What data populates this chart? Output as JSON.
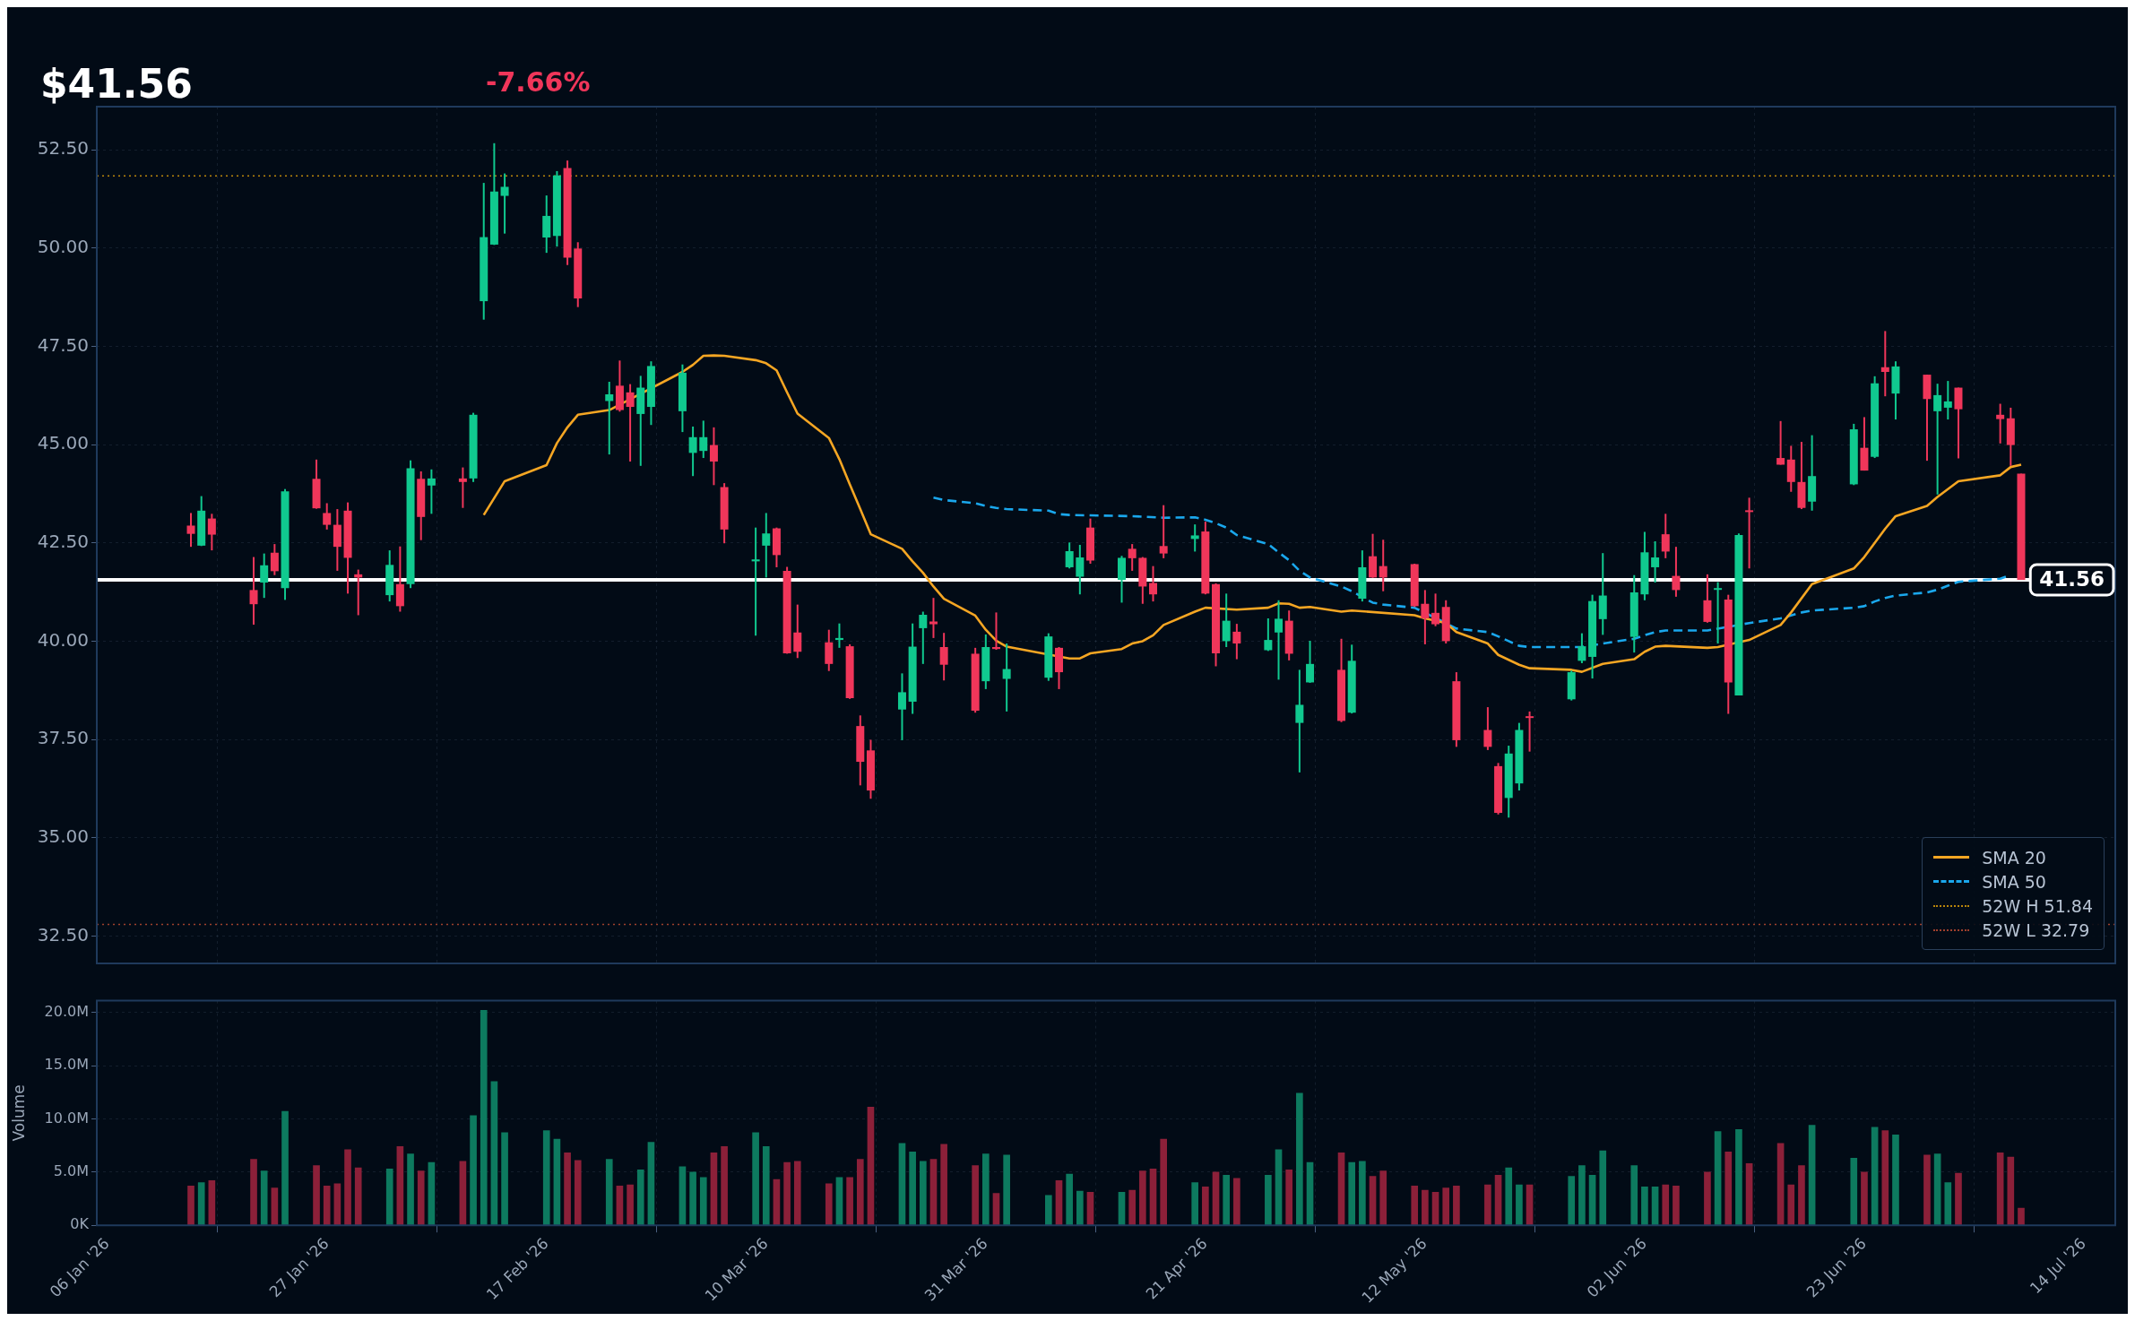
{
  "chart_data": [
    {
      "type": "candlestick",
      "title": "$41.56",
      "subtitle": "-7.66%",
      "x": [
        "2026-01-14",
        "2026-01-15",
        "2026-01-16",
        "2026-01-20",
        "2026-01-21",
        "2026-01-22",
        "2026-01-23",
        "2026-01-26",
        "2026-01-27",
        "2026-01-28",
        "2026-01-29",
        "2026-01-30",
        "2026-02-02",
        "2026-02-03",
        "2026-02-04",
        "2026-02-05",
        "2026-02-06",
        "2026-02-09",
        "2026-02-10",
        "2026-02-11",
        "2026-02-12",
        "2026-02-13",
        "2026-02-17",
        "2026-02-18",
        "2026-02-19",
        "2026-02-20",
        "2026-02-23",
        "2026-02-24",
        "2026-02-25",
        "2026-02-26",
        "2026-02-27",
        "2026-03-02",
        "2026-03-03",
        "2026-03-04",
        "2026-03-05",
        "2026-03-06",
        "2026-03-09",
        "2026-03-10",
        "2026-03-11",
        "2026-03-12",
        "2026-03-13",
        "2026-03-16",
        "2026-03-17",
        "2026-03-18",
        "2026-03-19",
        "2026-03-20",
        "2026-03-23",
        "2026-03-24",
        "2026-03-25",
        "2026-03-26",
        "2026-03-27",
        "2026-03-30",
        "2026-03-31",
        "2026-04-01",
        "2026-04-02",
        "2026-04-06",
        "2026-04-07",
        "2026-04-08",
        "2026-04-09",
        "2026-04-10",
        "2026-04-13",
        "2026-04-14",
        "2026-04-15",
        "2026-04-16",
        "2026-04-17",
        "2026-04-20",
        "2026-04-21",
        "2026-04-22",
        "2026-04-23",
        "2026-04-24",
        "2026-04-27",
        "2026-04-28",
        "2026-04-29",
        "2026-04-30",
        "2026-05-01",
        "2026-05-04",
        "2026-05-05",
        "2026-05-06",
        "2026-05-07",
        "2026-05-08",
        "2026-05-11",
        "2026-05-12",
        "2026-05-13",
        "2026-05-14",
        "2026-05-15",
        "2026-05-18",
        "2026-05-19",
        "2026-05-20",
        "2026-05-21",
        "2026-05-22",
        "2026-05-26",
        "2026-05-27",
        "2026-05-28",
        "2026-05-29",
        "2026-06-01",
        "2026-06-02",
        "2026-06-03",
        "2026-06-04",
        "2026-06-05",
        "2026-06-08",
        "2026-06-09",
        "2026-06-10",
        "2026-06-11",
        "2026-06-12",
        "2026-06-15",
        "2026-06-16",
        "2026-06-17",
        "2026-06-18",
        "2026-06-22",
        "2026-06-23",
        "2026-06-24",
        "2026-06-25",
        "2026-06-26",
        "2026-06-29",
        "2026-06-30",
        "2026-07-01",
        "2026-07-02",
        "2026-07-06",
        "2026-07-07",
        "2026-07-08"
      ],
      "ohlc": [
        [
          42.94,
          43.26,
          42.4,
          42.73
        ],
        [
          42.43,
          43.69,
          42.42,
          43.32
        ],
        [
          43.12,
          43.24,
          42.31,
          42.71
        ],
        [
          41.3,
          42.14,
          40.42,
          40.94
        ],
        [
          41.49,
          42.23,
          41.1,
          41.93
        ],
        [
          42.25,
          42.47,
          41.68,
          41.78
        ],
        [
          41.35,
          43.87,
          41.05,
          43.81
        ],
        [
          44.13,
          44.62,
          43.37,
          43.38
        ],
        [
          43.26,
          43.51,
          42.84,
          42.96
        ],
        [
          42.96,
          43.36,
          41.79,
          42.4
        ],
        [
          43.32,
          43.53,
          41.21,
          42.12
        ],
        [
          41.7,
          41.82,
          40.66,
          41.62
        ],
        [
          41.17,
          42.31,
          41.01,
          41.94
        ],
        [
          41.45,
          42.41,
          40.75,
          40.89
        ],
        [
          41.45,
          44.6,
          41.35,
          44.4
        ],
        [
          44.13,
          44.32,
          42.57,
          43.16
        ],
        [
          43.96,
          44.37,
          43.24,
          44.14
        ],
        [
          44.14,
          44.42,
          43.39,
          44.05
        ],
        [
          44.14,
          45.81,
          44.05,
          45.76
        ],
        [
          48.65,
          51.66,
          48.18,
          50.28
        ],
        [
          50.09,
          52.67,
          50.08,
          51.44
        ],
        [
          51.33,
          51.9,
          50.37,
          51.56
        ],
        [
          50.27,
          51.34,
          49.88,
          50.82
        ],
        [
          50.31,
          51.96,
          50.04,
          51.85
        ],
        [
          52.04,
          52.23,
          49.57,
          49.76
        ],
        [
          49.99,
          50.15,
          48.5,
          48.72
        ],
        [
          46.11,
          46.6,
          44.75,
          46.28
        ],
        [
          46.5,
          47.14,
          45.84,
          45.88
        ],
        [
          46.33,
          46.54,
          44.57,
          45.96
        ],
        [
          45.78,
          46.75,
          44.46,
          46.45
        ],
        [
          45.96,
          47.12,
          45.5,
          47.0
        ],
        [
          45.85,
          47.04,
          45.32,
          46.83
        ],
        [
          44.79,
          45.46,
          44.2,
          45.19
        ],
        [
          44.84,
          45.61,
          44.66,
          45.19
        ],
        [
          44.99,
          45.44,
          43.97,
          44.57
        ],
        [
          43.92,
          44.02,
          42.49,
          42.84
        ],
        [
          42.03,
          42.89,
          40.14,
          42.08
        ],
        [
          42.43,
          43.26,
          41.62,
          42.74
        ],
        [
          42.87,
          42.89,
          41.88,
          42.19
        ],
        [
          41.79,
          41.89,
          39.68,
          39.69
        ],
        [
          40.22,
          40.93,
          39.57,
          39.73
        ],
        [
          39.97,
          40.29,
          39.24,
          39.42
        ],
        [
          40.03,
          40.45,
          39.83,
          40.08
        ],
        [
          39.87,
          39.92,
          38.53,
          38.55
        ],
        [
          37.84,
          38.11,
          36.33,
          36.93
        ],
        [
          37.22,
          37.49,
          35.99,
          36.2
        ],
        [
          38.26,
          39.18,
          37.48,
          38.7
        ],
        [
          38.46,
          40.45,
          38.15,
          39.86
        ],
        [
          40.33,
          40.75,
          39.42,
          40.67
        ],
        [
          40.5,
          41.1,
          40.08,
          40.43
        ],
        [
          39.85,
          40.21,
          39.0,
          39.4
        ],
        [
          39.68,
          39.83,
          38.18,
          38.23
        ],
        [
          38.98,
          40.17,
          38.78,
          39.85
        ],
        [
          39.85,
          40.73,
          39.78,
          39.8
        ],
        [
          39.04,
          39.94,
          38.21,
          39.29
        ],
        [
          39.07,
          40.2,
          38.99,
          40.12
        ],
        [
          39.83,
          39.85,
          38.78,
          39.21
        ],
        [
          41.88,
          42.51,
          41.85,
          42.29
        ],
        [
          41.64,
          42.45,
          41.19,
          42.13
        ],
        [
          42.89,
          43.12,
          41.97,
          42.05
        ],
        [
          41.56,
          42.17,
          40.98,
          42.12
        ],
        [
          42.35,
          42.47,
          41.79,
          42.11
        ],
        [
          42.12,
          42.14,
          40.95,
          41.39
        ],
        [
          41.48,
          41.91,
          41.01,
          41.19
        ],
        [
          42.42,
          43.46,
          42.11,
          42.23
        ],
        [
          42.6,
          42.97,
          42.28,
          42.69
        ],
        [
          42.79,
          43.04,
          41.19,
          41.21
        ],
        [
          41.45,
          41.47,
          39.36,
          39.69
        ],
        [
          40.0,
          41.21,
          39.85,
          40.52
        ],
        [
          40.24,
          40.44,
          39.54,
          39.94
        ],
        [
          39.77,
          40.58,
          39.75,
          40.03
        ],
        [
          40.22,
          41.04,
          39.02,
          40.57
        ],
        [
          40.52,
          40.78,
          39.51,
          39.68
        ],
        [
          37.92,
          39.27,
          36.66,
          38.38
        ],
        [
          38.95,
          40.01,
          38.94,
          39.42
        ],
        [
          39.27,
          40.06,
          37.94,
          37.97
        ],
        [
          38.18,
          39.91,
          38.16,
          39.5
        ],
        [
          41.08,
          42.31,
          41.01,
          41.88
        ],
        [
          42.16,
          42.73,
          41.61,
          41.62
        ],
        [
          41.91,
          42.58,
          41.27,
          41.62
        ],
        [
          41.96,
          41.97,
          40.87,
          40.89
        ],
        [
          40.95,
          41.3,
          39.92,
          40.58
        ],
        [
          40.72,
          41.21,
          40.38,
          40.43
        ],
        [
          40.87,
          41.04,
          39.94,
          40.0
        ],
        [
          38.98,
          39.21,
          37.31,
          37.48
        ],
        [
          37.74,
          38.32,
          37.23,
          37.31
        ],
        [
          36.82,
          36.9,
          35.59,
          35.63
        ],
        [
          36.01,
          37.34,
          35.51,
          37.14
        ],
        [
          36.38,
          37.92,
          36.2,
          37.74
        ],
        [
          38.09,
          38.21,
          37.19,
          38.05
        ],
        [
          38.52,
          39.25,
          38.49,
          39.21
        ],
        [
          39.5,
          40.2,
          39.44,
          39.87
        ],
        [
          39.6,
          41.18,
          39.05,
          41.02
        ],
        [
          40.56,
          42.24,
          40.16,
          41.16
        ],
        [
          40.11,
          41.68,
          39.71,
          41.24
        ],
        [
          41.19,
          42.78,
          41.04,
          42.26
        ],
        [
          41.88,
          42.54,
          41.49,
          42.13
        ],
        [
          42.72,
          43.24,
          42.11,
          42.28
        ],
        [
          41.66,
          42.4,
          41.13,
          41.3
        ],
        [
          41.04,
          41.7,
          40.47,
          40.49
        ],
        [
          41.31,
          41.5,
          39.94,
          41.35
        ],
        [
          41.06,
          41.18,
          38.15,
          38.95
        ],
        [
          38.62,
          42.74,
          38.62,
          42.7
        ],
        [
          43.33,
          43.65,
          41.85,
          43.3
        ],
        [
          44.66,
          45.6,
          44.49,
          44.49
        ],
        [
          44.62,
          44.97,
          43.8,
          44.05
        ],
        [
          44.05,
          45.07,
          43.36,
          43.39
        ],
        [
          43.55,
          45.24,
          43.32,
          44.2
        ],
        [
          43.99,
          45.53,
          43.97,
          45.39
        ],
        [
          44.92,
          45.7,
          44.34,
          44.34
        ],
        [
          44.69,
          46.74,
          44.66,
          46.56
        ],
        [
          46.97,
          47.89,
          46.23,
          46.85
        ],
        [
          46.3,
          47.12,
          45.64,
          46.99
        ],
        [
          46.78,
          46.78,
          44.59,
          46.16
        ],
        [
          45.85,
          46.55,
          43.73,
          46.26
        ],
        [
          45.94,
          46.62,
          45.64,
          46.1
        ],
        [
          46.45,
          46.45,
          44.65,
          45.9
        ],
        [
          45.76,
          46.04,
          45.03,
          45.65
        ],
        [
          45.67,
          45.94,
          44.46,
          44.99
        ],
        [
          44.26,
          44.26,
          41.56,
          41.56
        ]
      ],
      "series": [
        {
          "name": "SMA 20",
          "type": "line",
          "color": "#f5a623",
          "line_style": "solid",
          "x": [
            "2026-02-11",
            "2026-02-13",
            "2026-02-17",
            "2026-02-18",
            "2026-02-19",
            "2026-02-20",
            "2026-02-23",
            "2026-02-25",
            "2026-02-27",
            "2026-03-02",
            "2026-03-03",
            "2026-03-04",
            "2026-03-05",
            "2026-03-06",
            "2026-03-09",
            "2026-03-10",
            "2026-03-11",
            "2026-03-12",
            "2026-03-13",
            "2026-03-16",
            "2026-03-17",
            "2026-03-18",
            "2026-03-19",
            "2026-03-20",
            "2026-03-23",
            "2026-03-24",
            "2026-03-25",
            "2026-03-26",
            "2026-03-27",
            "2026-03-30",
            "2026-03-31",
            "2026-04-01",
            "2026-04-02",
            "2026-04-06",
            "2026-04-07",
            "2026-04-08",
            "2026-04-09",
            "2026-04-10",
            "2026-04-13",
            "2026-04-14",
            "2026-04-15",
            "2026-04-16",
            "2026-04-17",
            "2026-04-20",
            "2026-04-21",
            "2026-04-24",
            "2026-04-27",
            "2026-04-28",
            "2026-04-29",
            "2026-04-30",
            "2026-05-01",
            "2026-05-04",
            "2026-05-05",
            "2026-05-11",
            "2026-05-12",
            "2026-05-14",
            "2026-05-15",
            "2026-05-18",
            "2026-05-19",
            "2026-05-21",
            "2026-05-22",
            "2026-05-26",
            "2026-05-27",
            "2026-05-29",
            "2026-06-01",
            "2026-06-02",
            "2026-06-03",
            "2026-06-04",
            "2026-06-08",
            "2026-06-09",
            "2026-06-10",
            "2026-06-11",
            "2026-06-12",
            "2026-06-15",
            "2026-06-16",
            "2026-06-18",
            "2026-06-22",
            "2026-06-23",
            "2026-06-25",
            "2026-06-26",
            "2026-06-29",
            "2026-06-30",
            "2026-07-02",
            "2026-07-06",
            "2026-07-07",
            "2026-07-08"
          ],
          "values": [
            43.21,
            44.07,
            44.48,
            45.04,
            45.44,
            45.76,
            45.88,
            null,
            null,
            46.85,
            47.03,
            47.26,
            47.27,
            47.26,
            47.15,
            47.07,
            46.89,
            46.33,
            45.79,
            45.17,
            44.63,
            43.99,
            43.36,
            42.72,
            42.35,
            42.03,
            41.74,
            41.39,
            41.08,
            40.65,
            40.29,
            40.01,
            39.86,
            null,
            null,
            39.56,
            39.56,
            39.69,
            39.8,
            39.94,
            40.0,
            40.15,
            40.41,
            40.75,
            40.85,
            40.8,
            40.85,
            40.96,
            40.95,
            40.85,
            40.87,
            40.75,
            40.78,
            40.66,
            40.58,
            40.46,
            40.23,
            39.94,
            39.65,
            39.4,
            39.31,
            39.27,
            39.22,
            39.42,
            39.54,
            39.73,
            39.86,
            39.88,
            39.83,
            39.85,
            null,
            null,
            40.03,
            40.41,
            40.73,
            41.45,
            41.85,
            42.14,
            42.86,
            43.18,
            43.44,
            43.67,
            44.07,
            44.22,
            44.43,
            44.49
          ]
        },
        {
          "name": "SMA 50",
          "type": "line",
          "color": "#1aa7ec",
          "line_style": "dashed",
          "x": [
            "2026-03-26",
            "2026-03-27",
            "2026-03-30",
            "2026-03-31",
            "2026-04-01",
            "2026-04-02",
            "2026-04-06",
            "2026-04-07",
            "2026-04-08",
            "2026-04-10",
            "2026-04-14",
            "2026-04-17",
            "2026-04-20",
            "2026-04-21",
            "2026-04-22",
            "2026-04-23",
            "2026-04-24",
            "2026-04-27",
            "2026-04-28",
            "2026-04-29",
            "2026-04-30",
            "2026-05-01",
            "2026-05-04",
            "2026-05-05",
            "2026-05-06",
            "2026-05-07",
            "2026-05-08",
            "2026-05-11",
            "2026-05-12",
            "2026-05-13",
            "2026-05-14",
            "2026-05-15",
            "2026-05-18",
            "2026-05-19",
            "2026-05-20",
            "2026-05-21",
            "2026-05-22",
            "2026-05-27",
            "2026-05-28",
            "2026-05-29",
            "2026-06-01",
            "2026-06-02",
            "2026-06-03",
            "2026-06-04",
            "2026-06-08",
            "2026-06-10",
            "2026-06-12",
            "2026-06-15",
            "2026-06-17",
            "2026-06-18",
            "2026-06-22",
            "2026-06-23",
            "2026-06-24",
            "2026-06-25",
            "2026-06-26",
            "2026-06-29",
            "2026-06-30",
            "2026-07-01",
            "2026-07-02",
            "2026-07-06",
            "2026-07-07"
          ],
          "values": [
            43.65,
            43.59,
            43.51,
            43.44,
            43.39,
            43.36,
            43.32,
            43.23,
            43.21,
            43.2,
            43.18,
            43.14,
            43.15,
            43.09,
            43.0,
            42.89,
            42.7,
            42.47,
            42.26,
            42.06,
            41.79,
            41.62,
            41.39,
            41.27,
            null,
            40.98,
            40.93,
            40.85,
            null,
            null,
            40.46,
            40.32,
            40.23,
            40.12,
            40.0,
            39.88,
            39.85,
            39.85,
            null,
            39.94,
            40.06,
            40.15,
            40.23,
            40.27,
            40.27,
            null,
            40.46,
            40.58,
            40.73,
            40.78,
            40.85,
            40.89,
            41.01,
            41.1,
            41.16,
            41.24,
            41.31,
            41.41,
            41.51,
            41.59,
            41.68
          ]
        }
      ],
      "xlim": [
        "2026-01-05",
        "2026-07-17"
      ],
      "xticks": [
        {
          "value": "2026-01-06",
          "label": null
        },
        {
          "value": "2026-01-27",
          "label": null
        },
        {
          "value": "2026-02-17",
          "label": null
        },
        {
          "value": "2026-03-10",
          "label": null
        },
        {
          "value": "2026-03-31",
          "label": null
        },
        {
          "value": "2026-04-21",
          "label": null
        },
        {
          "value": "2026-05-12",
          "label": null
        },
        {
          "value": "2026-06-02",
          "label": null
        },
        {
          "value": "2026-06-23",
          "label": null
        },
        {
          "value": "2026-07-14",
          "label": null
        }
      ],
      "ylim": [
        31.8,
        53.6
      ],
      "yticks": [
        {
          "value": 32.5,
          "label": "32.50"
        },
        {
          "value": 35,
          "label": "35.00"
        },
        {
          "value": 37.5,
          "label": "37.50"
        },
        {
          "value": 40,
          "label": "40.00"
        },
        {
          "value": 42.5,
          "label": "42.50"
        },
        {
          "value": 45,
          "label": "45.00"
        },
        {
          "value": 47.5,
          "label": "47.50"
        },
        {
          "value": 50,
          "label": "50.00"
        },
        {
          "value": 52.5,
          "label": "52.50"
        }
      ],
      "ref_lines": [
        {
          "axis": "y",
          "value": 51.84,
          "label": "52W H 51.84",
          "color": "#b8860b",
          "line_style": "dotted"
        },
        {
          "axis": "y",
          "value": 32.79,
          "label": "52W L 32.79",
          "color": "#a0412d",
          "line_style": "dotted"
        },
        {
          "axis": "y",
          "value": 41.56,
          "label": "41.56",
          "color": "#ffffff",
          "line_style": "solid"
        }
      ],
      "grid": true,
      "legend": "bottom right",
      "tick_labels": "y"
    },
    {
      "type": "bar",
      "ylabel": "Volume",
      "x": [
        "2026-01-14",
        "2026-01-15",
        "2026-01-16",
        "2026-01-20",
        "2026-01-21",
        "2026-01-22",
        "2026-01-23",
        "2026-01-26",
        "2026-01-27",
        "2026-01-28",
        "2026-01-29",
        "2026-01-30",
        "2026-02-02",
        "2026-02-03",
        "2026-02-04",
        "2026-02-05",
        "2026-02-06",
        "2026-02-09",
        "2026-02-10",
        "2026-02-11",
        "2026-02-12",
        "2026-02-13",
        "2026-02-17",
        "2026-02-18",
        "2026-02-19",
        "2026-02-20",
        "2026-02-23",
        "2026-02-24",
        "2026-02-25",
        "2026-02-26",
        "2026-02-27",
        "2026-03-02",
        "2026-03-03",
        "2026-03-04",
        "2026-03-05",
        "2026-03-06",
        "2026-03-09",
        "2026-03-10",
        "2026-03-11",
        "2026-03-12",
        "2026-03-13",
        "2026-03-16",
        "2026-03-17",
        "2026-03-18",
        "2026-03-19",
        "2026-03-20",
        "2026-03-23",
        "2026-03-24",
        "2026-03-25",
        "2026-03-26",
        "2026-03-27",
        "2026-03-30",
        "2026-03-31",
        "2026-04-01",
        "2026-04-02",
        "2026-04-06",
        "2026-04-07",
        "2026-04-08",
        "2026-04-09",
        "2026-04-10",
        "2026-04-13",
        "2026-04-14",
        "2026-04-15",
        "2026-04-16",
        "2026-04-17",
        "2026-04-20",
        "2026-04-21",
        "2026-04-22",
        "2026-04-23",
        "2026-04-24",
        "2026-04-27",
        "2026-04-28",
        "2026-04-29",
        "2026-04-30",
        "2026-05-01",
        "2026-05-04",
        "2026-05-05",
        "2026-05-06",
        "2026-05-07",
        "2026-05-08",
        "2026-05-11",
        "2026-05-12",
        "2026-05-13",
        "2026-05-14",
        "2026-05-15",
        "2026-05-18",
        "2026-05-19",
        "2026-05-20",
        "2026-05-21",
        "2026-05-22",
        "2026-05-26",
        "2026-05-27",
        "2026-05-28",
        "2026-05-29",
        "2026-06-01",
        "2026-06-02",
        "2026-06-03",
        "2026-06-04",
        "2026-06-05",
        "2026-06-08",
        "2026-06-09",
        "2026-06-10",
        "2026-06-11",
        "2026-06-12",
        "2026-06-15",
        "2026-06-16",
        "2026-06-17",
        "2026-06-18",
        "2026-06-22",
        "2026-06-23",
        "2026-06-24",
        "2026-06-25",
        "2026-06-26",
        "2026-06-29",
        "2026-06-30",
        "2026-07-01",
        "2026-07-02",
        "2026-07-06",
        "2026-07-07",
        "2026-07-08"
      ],
      "values": [
        3.7,
        4.0,
        4.2,
        6.2,
        5.1,
        3.5,
        10.7,
        5.6,
        3.7,
        3.9,
        7.1,
        5.4,
        5.3,
        7.4,
        6.7,
        5.1,
        5.9,
        6.0,
        10.3,
        20.2,
        13.5,
        8.7,
        8.9,
        8.1,
        6.8,
        6.1,
        6.2,
        3.7,
        3.8,
        5.2,
        7.8,
        5.5,
        5.0,
        4.5,
        6.8,
        7.4,
        8.7,
        7.4,
        4.3,
        5.9,
        6.0,
        3.9,
        4.5,
        4.5,
        6.2,
        11.1,
        7.7,
        6.9,
        6.0,
        6.2,
        7.6,
        5.6,
        6.7,
        3.0,
        6.6,
        2.8,
        4.2,
        4.8,
        3.2,
        3.1,
        3.1,
        3.3,
        5.1,
        5.3,
        8.1,
        4.0,
        3.6,
        5.0,
        4.7,
        4.4,
        4.7,
        7.1,
        5.2,
        12.4,
        5.9,
        6.8,
        5.9,
        6.0,
        4.6,
        5.1,
        3.7,
        3.3,
        3.1,
        3.5,
        3.7,
        3.8,
        4.7,
        5.4,
        3.8,
        3.8,
        4.6,
        5.6,
        4.7,
        7.0,
        5.6,
        3.6,
        3.6,
        3.8,
        3.7,
        5.0,
        8.8,
        6.9,
        9.0,
        5.8,
        7.7,
        3.8,
        5.6,
        9.4,
        6.3,
        5.0,
        9.2,
        8.9,
        8.5,
        6.6,
        6.7,
        4.0,
        4.9,
        6.8,
        6.4,
        1.6
      ],
      "colors": [
        "#8c2039",
        "#0d7a5f",
        "#8c2039",
        "#8c2039",
        "#0d7a5f",
        "#8c2039",
        "#0d7a5f",
        "#8c2039",
        "#8c2039",
        "#8c2039",
        "#8c2039",
        "#8c2039",
        "#0d7a5f",
        "#8c2039",
        "#0d7a5f",
        "#8c2039",
        "#0d7a5f",
        "#8c2039",
        "#0d7a5f",
        "#0d7a5f",
        "#0d7a5f",
        "#0d7a5f",
        "#0d7a5f",
        "#0d7a5f",
        "#8c2039",
        "#8c2039",
        "#0d7a5f",
        "#8c2039",
        "#8c2039",
        "#0d7a5f",
        "#0d7a5f",
        "#0d7a5f",
        "#0d7a5f",
        "#0d7a5f",
        "#8c2039",
        "#8c2039",
        "#0d7a5f",
        "#0d7a5f",
        "#8c2039",
        "#8c2039",
        "#8c2039",
        "#8c2039",
        "#0d7a5f",
        "#8c2039",
        "#8c2039",
        "#8c2039",
        "#0d7a5f",
        "#0d7a5f",
        "#0d7a5f",
        "#8c2039",
        "#8c2039",
        "#8c2039",
        "#0d7a5f",
        "#8c2039",
        "#0d7a5f",
        "#0d7a5f",
        "#8c2039",
        "#0d7a5f",
        "#0d7a5f",
        "#8c2039",
        "#0d7a5f",
        "#8c2039",
        "#8c2039",
        "#8c2039",
        "#8c2039",
        "#0d7a5f",
        "#8c2039",
        "#8c2039",
        "#0d7a5f",
        "#8c2039",
        "#0d7a5f",
        "#0d7a5f",
        "#8c2039",
        "#0d7a5f",
        "#0d7a5f",
        "#8c2039",
        "#0d7a5f",
        "#0d7a5f",
        "#8c2039",
        "#8c2039",
        "#8c2039",
        "#8c2039",
        "#8c2039",
        "#8c2039",
        "#8c2039",
        "#8c2039",
        "#8c2039",
        "#0d7a5f",
        "#0d7a5f",
        "#8c2039",
        "#0d7a5f",
        "#0d7a5f",
        "#0d7a5f",
        "#0d7a5f",
        "#0d7a5f",
        "#0d7a5f",
        "#0d7a5f",
        "#8c2039",
        "#8c2039",
        "#8c2039",
        "#0d7a5f",
        "#8c2039",
        "#0d7a5f",
        "#8c2039",
        "#8c2039",
        "#8c2039",
        "#8c2039",
        "#0d7a5f",
        "#0d7a5f",
        "#8c2039",
        "#0d7a5f",
        "#8c2039",
        "#0d7a5f",
        "#8c2039",
        "#0d7a5f",
        "#0d7a5f",
        "#8c2039",
        "#8c2039",
        "#8c2039",
        "#8c2039"
      ],
      "xlim": [
        "2026-01-05",
        "2026-07-17"
      ],
      "xticks": [
        {
          "value": "2026-01-06",
          "label": "06 Jan '26"
        },
        {
          "value": "2026-01-27",
          "label": "27 Jan '26"
        },
        {
          "value": "2026-02-17",
          "label": "17 Feb '26"
        },
        {
          "value": "2026-03-10",
          "label": "10 Mar '26"
        },
        {
          "value": "2026-03-31",
          "label": "31 Mar '26"
        },
        {
          "value": "2026-04-21",
          "label": "21 Apr '26"
        },
        {
          "value": "2026-05-12",
          "label": "12 May '26"
        },
        {
          "value": "2026-06-02",
          "label": "02 Jun '26"
        },
        {
          "value": "2026-06-23",
          "label": "23 Jun '26"
        },
        {
          "value": "2026-07-14",
          "label": "14 Jul '26"
        }
      ],
      "ylim": [
        0,
        21.1
      ],
      "yticks": [
        {
          "value": 0,
          "label": "0K"
        },
        {
          "value": 5,
          "label": "5.0M"
        },
        {
          "value": 10,
          "label": "10.0M"
        },
        {
          "value": 15,
          "label": "15.0M"
        },
        {
          "value": 20,
          "label": "20.0M"
        }
      ],
      "grid": true
    }
  ]
}
